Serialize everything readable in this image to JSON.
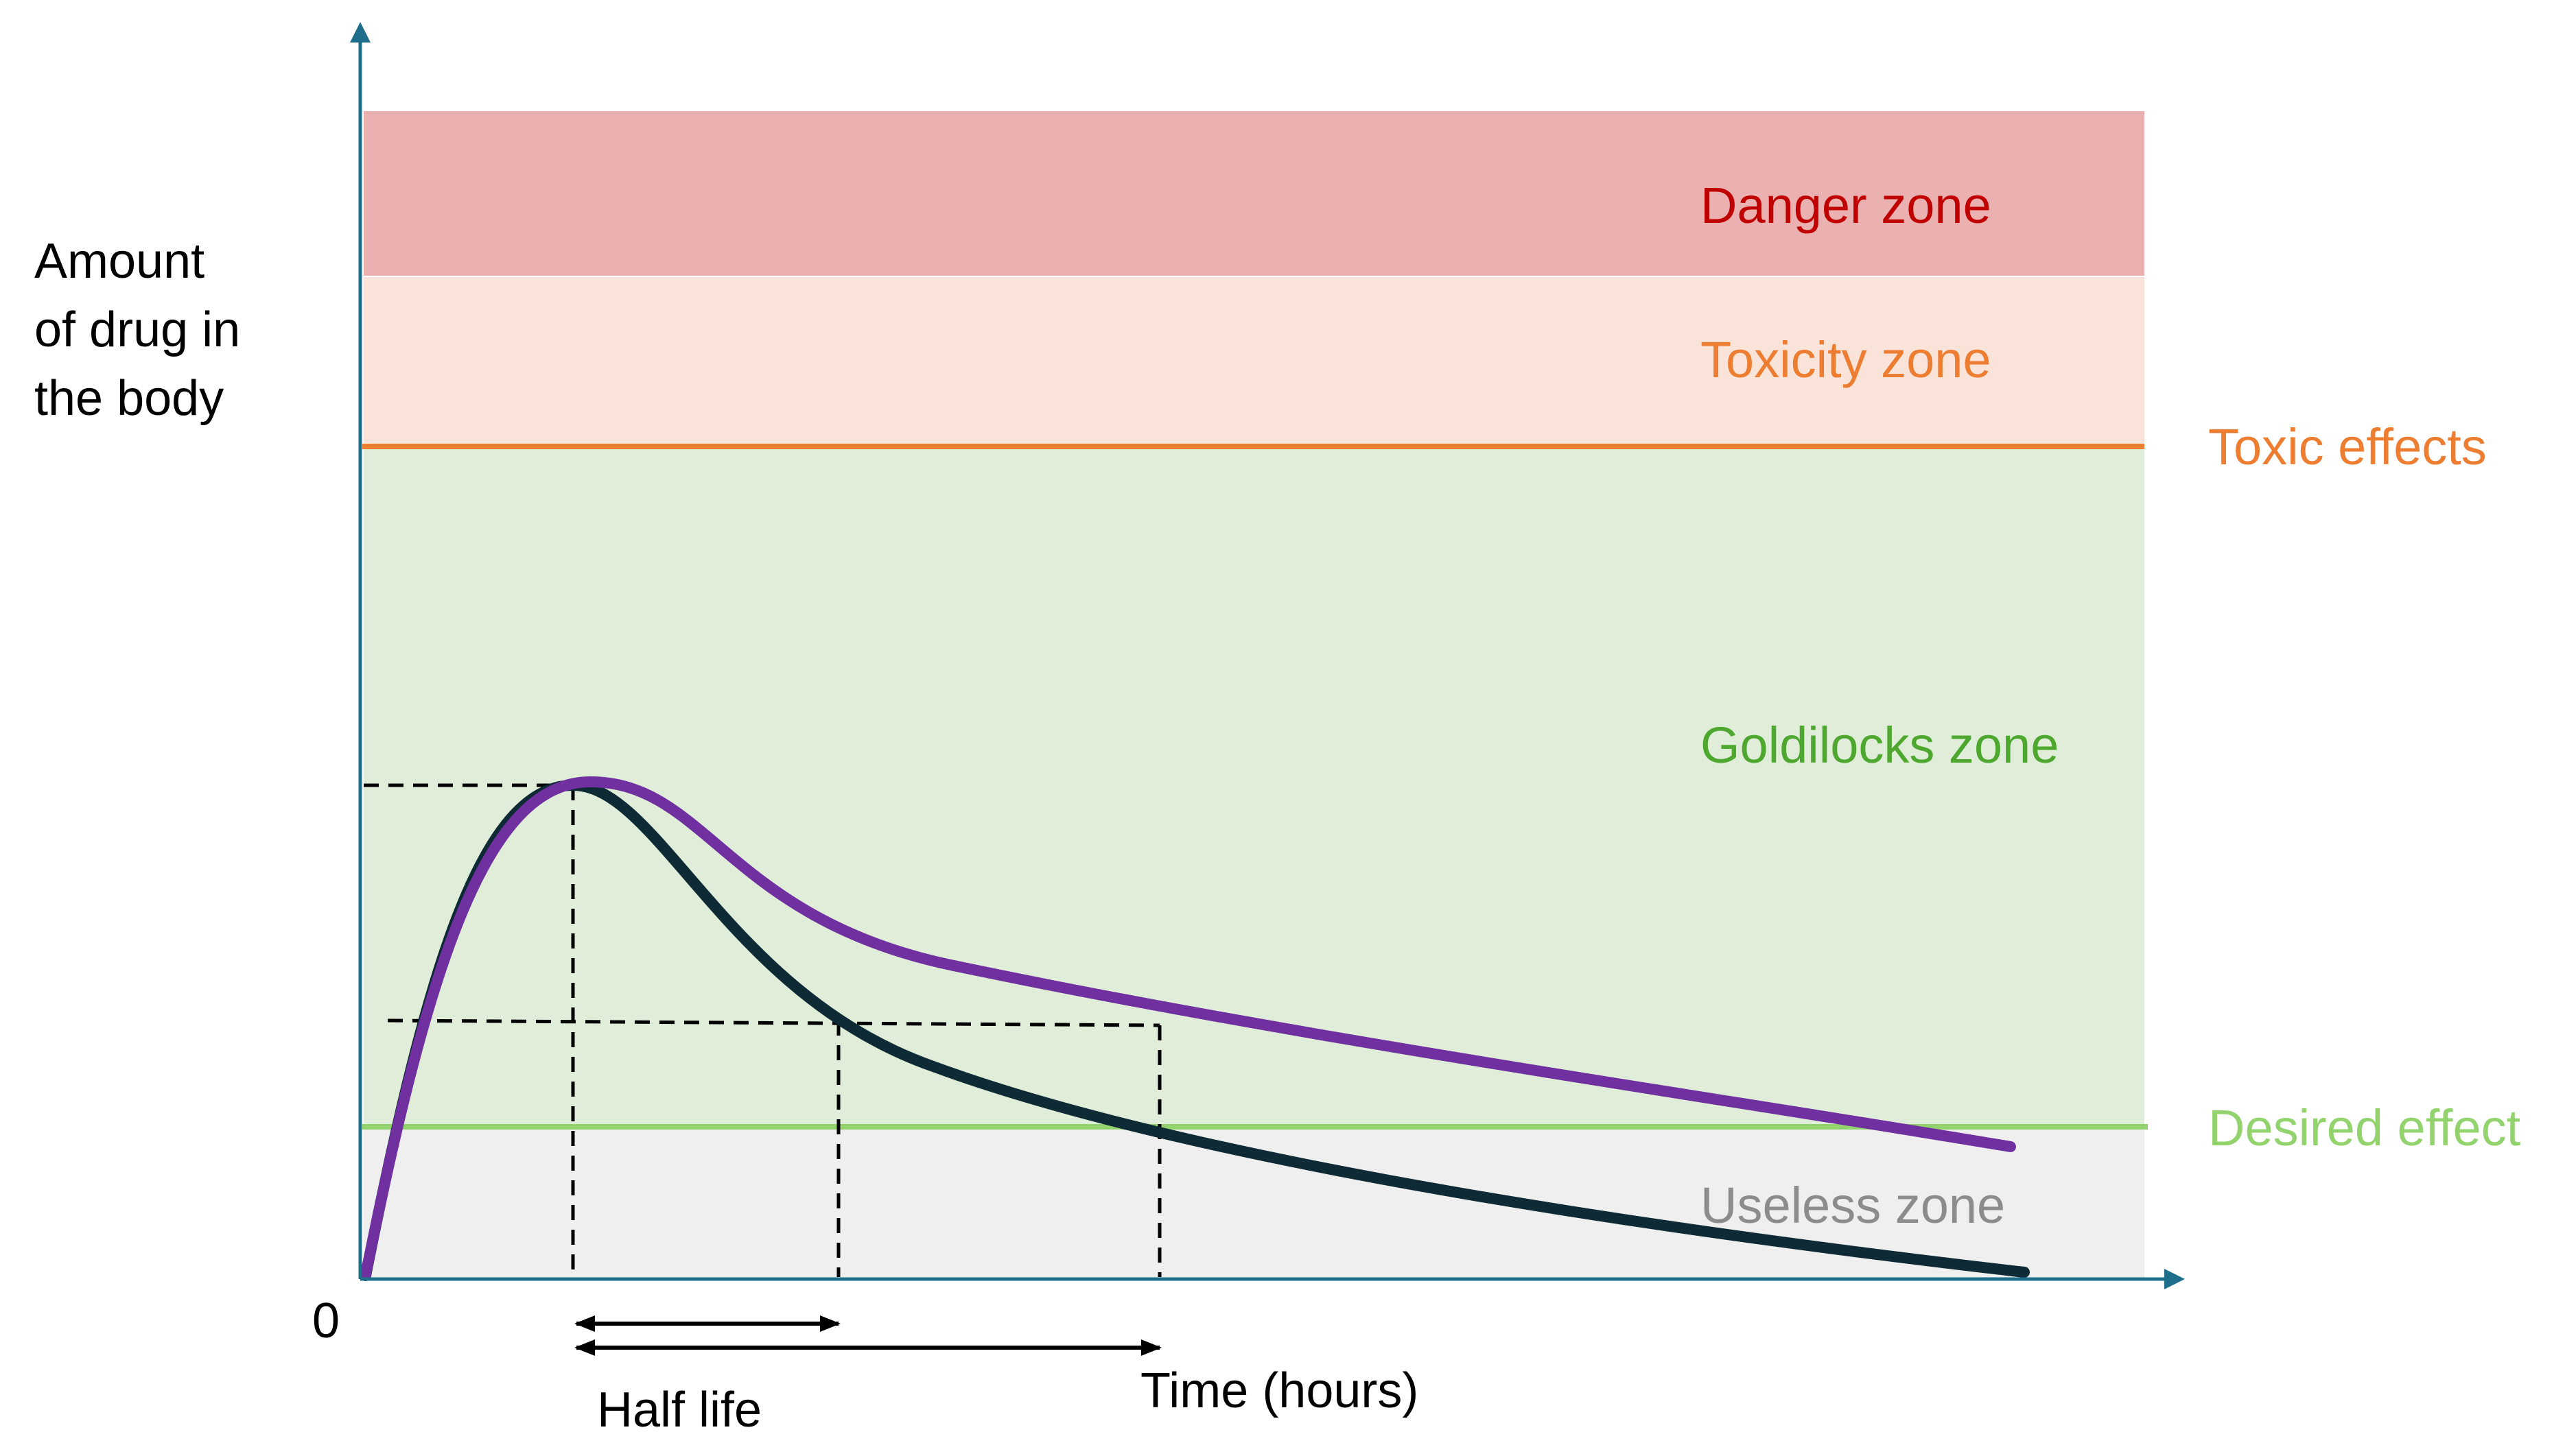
{
  "y_axis_label": [
    "Amount",
    "of drug in",
    "the body"
  ],
  "x_axis_label": "Time (hours)",
  "origin_label": "0",
  "half_life_label": "Half life",
  "zones": [
    {
      "id": "danger",
      "label": "Danger zone",
      "fill": "#EBB0B0",
      "text_color": "#C00000"
    },
    {
      "id": "toxicity",
      "label": "Toxicity zone",
      "fill": "#FAE3D8",
      "text_color": "#ED7D31"
    },
    {
      "id": "goldilocks",
      "label": "Goldilocks zone",
      "fill": "#E0EED9",
      "text_color": "#4EA72E"
    },
    {
      "id": "useless",
      "label": "Useless zone",
      "fill": "#EFEFEF",
      "text_color": "#8C8C8C"
    }
  ],
  "reference_lines": [
    {
      "id": "toxic",
      "label": "Toxic effects",
      "color": "#ED7D31"
    },
    {
      "id": "desired",
      "label": "Desired effect",
      "color": "#92D36E"
    }
  ],
  "curves": [
    {
      "id": "fast-elimination",
      "color": "#0E2A35"
    },
    {
      "id": "slow-elimination",
      "color": "#7030A0"
    }
  ],
  "axis_color": "#1F6E8C"
}
